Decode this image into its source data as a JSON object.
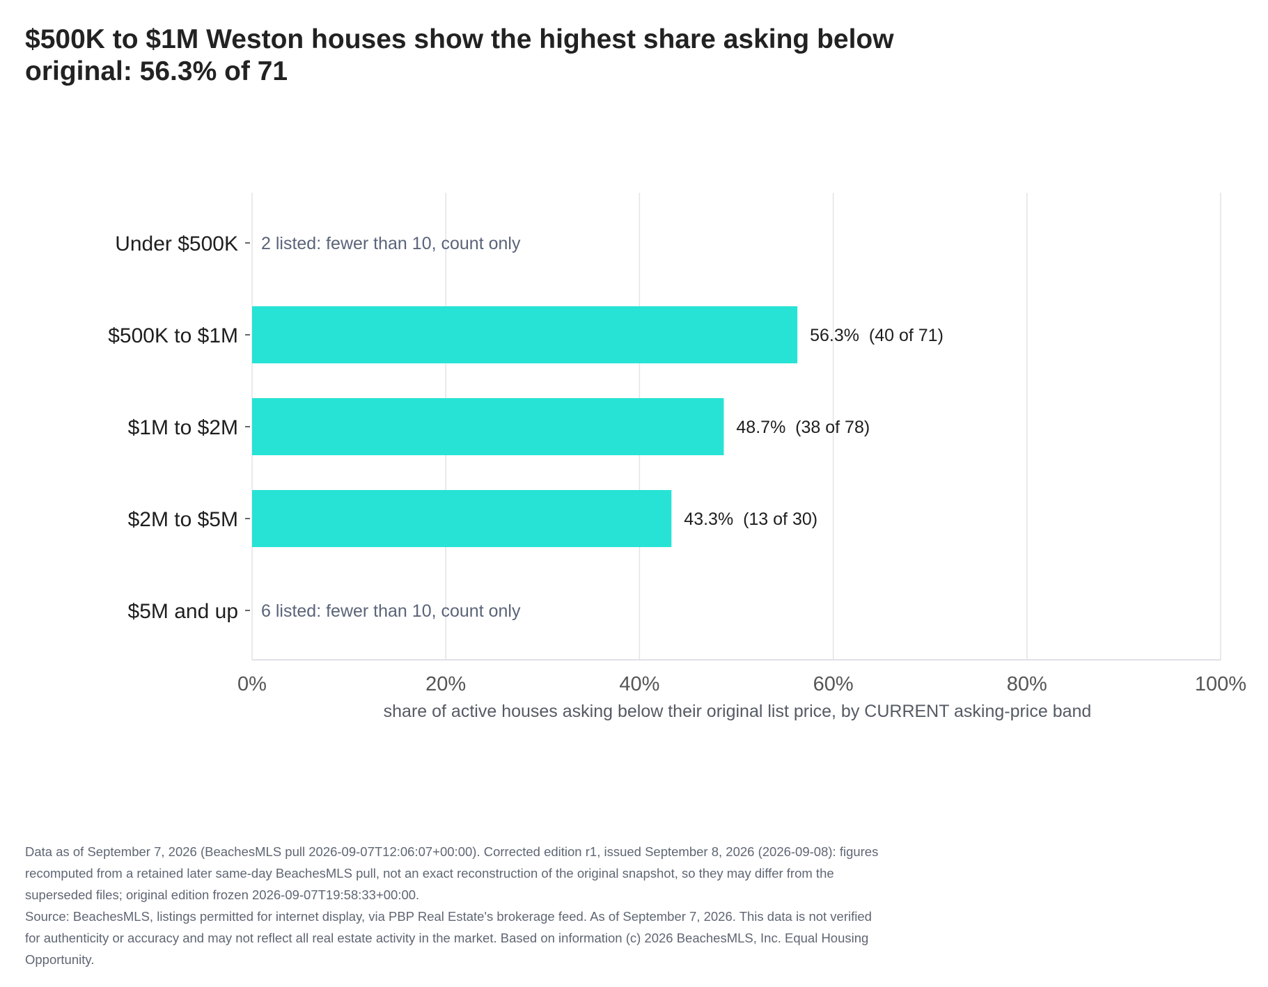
{
  "title_lines": [
    "$500K to $1M Weston houses show the highest share asking below",
    "original: 56.3% of 71"
  ],
  "chart_data": {
    "type": "bar",
    "orientation": "horizontal",
    "categories": [
      "Under $500K",
      "$500K to $1M",
      "$1M to $2M",
      "$2M to $5M",
      "$5M and up"
    ],
    "values": [
      null,
      56.3,
      48.7,
      43.3,
      null
    ],
    "value_labels": [
      "2 listed: fewer than 10, count only",
      "56.3%  (40 of 71)",
      "48.7%  (38 of 78)",
      "43.3%  (13 of 30)",
      "6 listed: fewer than 10, count only"
    ],
    "xlim": [
      0,
      100
    ],
    "xticks": [
      "0%",
      "20%",
      "40%",
      "60%",
      "80%",
      "100%"
    ],
    "xtick_values": [
      0,
      20,
      40,
      60,
      80,
      100
    ],
    "xlabel": "share of active houses asking below their original list price, by CURRENT asking-price band",
    "ylabel": "",
    "grid": "vertical",
    "bar_color": "#26e3d5",
    "note_color": "#5a6478",
    "grid_color": "#e3e3e8"
  },
  "footnote_lines": [
    "Data as of September 7, 2026 (BeachesMLS pull 2026-09-07T12:06:07+00:00). Corrected edition r1, issued September 8, 2026 (2026-09-08): figures",
    "recomputed from a retained later same-day BeachesMLS pull, not an exact reconstruction of the original snapshot, so they may differ from the",
    "superseded files; original edition frozen 2026-09-07T19:58:33+00:00.",
    "Source: BeachesMLS, listings permitted for internet display, via PBP Real Estate's brokerage feed. As of September 7, 2026. This data is not verified",
    "for authenticity or accuracy and may not reflect all real estate activity in the market. Based on information (c) 2026 BeachesMLS, Inc. Equal Housing",
    "Opportunity."
  ]
}
